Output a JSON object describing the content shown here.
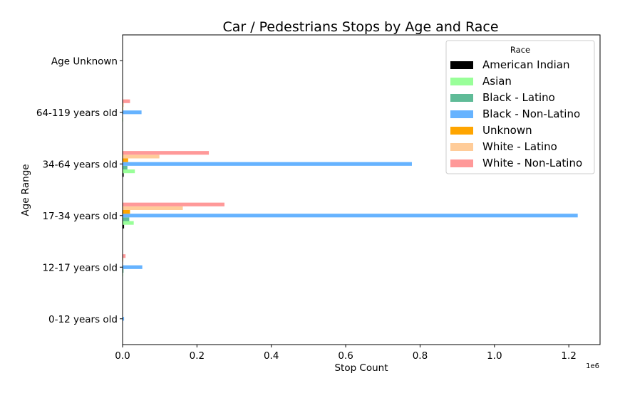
{
  "chart_data": {
    "type": "bar",
    "orientation": "horizontal",
    "title": "Car / Pedestrians Stops by Age and Race",
    "xlabel": "Stop Count",
    "ylabel": "Age Range",
    "x_offset_label": "1e6",
    "x_scale": 1000000,
    "xlim": [
      0,
      1284000
    ],
    "x_ticks": [
      0,
      200000,
      400000,
      600000,
      800000,
      1000000,
      1200000
    ],
    "x_tick_labels": [
      "0.0",
      "0.2",
      "0.4",
      "0.6",
      "0.8",
      "1.0",
      "1.2"
    ],
    "categories": [
      "0-12 years old",
      "12-17 years old",
      "17-34 years old",
      "34-64 years old",
      "64-119 years old",
      "Age Unknown"
    ],
    "legend": {
      "title": "Race",
      "placement": "top-right"
    },
    "grid": false,
    "series": [
      {
        "name": "American Indian",
        "color": "#000000",
        "values": [
          100,
          300,
          4000,
          3000,
          200,
          0
        ]
      },
      {
        "name": "Asian",
        "color": "#99ff99",
        "values": [
          200,
          1500,
          30000,
          33000,
          1500,
          0
        ]
      },
      {
        "name": "Black - Latino",
        "color": "#5fbb97",
        "values": [
          300,
          2500,
          18000,
          13000,
          1000,
          0
        ]
      },
      {
        "name": "Black - Non-Latino",
        "color": "#66b3ff",
        "values": [
          4000,
          53000,
          1224000,
          778000,
          51000,
          300
        ]
      },
      {
        "name": "Unknown",
        "color": "#ffa500",
        "values": [
          200,
          1000,
          20000,
          15000,
          1500,
          0
        ]
      },
      {
        "name": "White - Latino",
        "color": "#ffcc99",
        "values": [
          300,
          2000,
          162000,
          99000,
          3000,
          0
        ]
      },
      {
        "name": "White - Non-Latino",
        "color": "#ff9999",
        "values": [
          400,
          8000,
          274000,
          232000,
          20000,
          0
        ]
      }
    ]
  }
}
